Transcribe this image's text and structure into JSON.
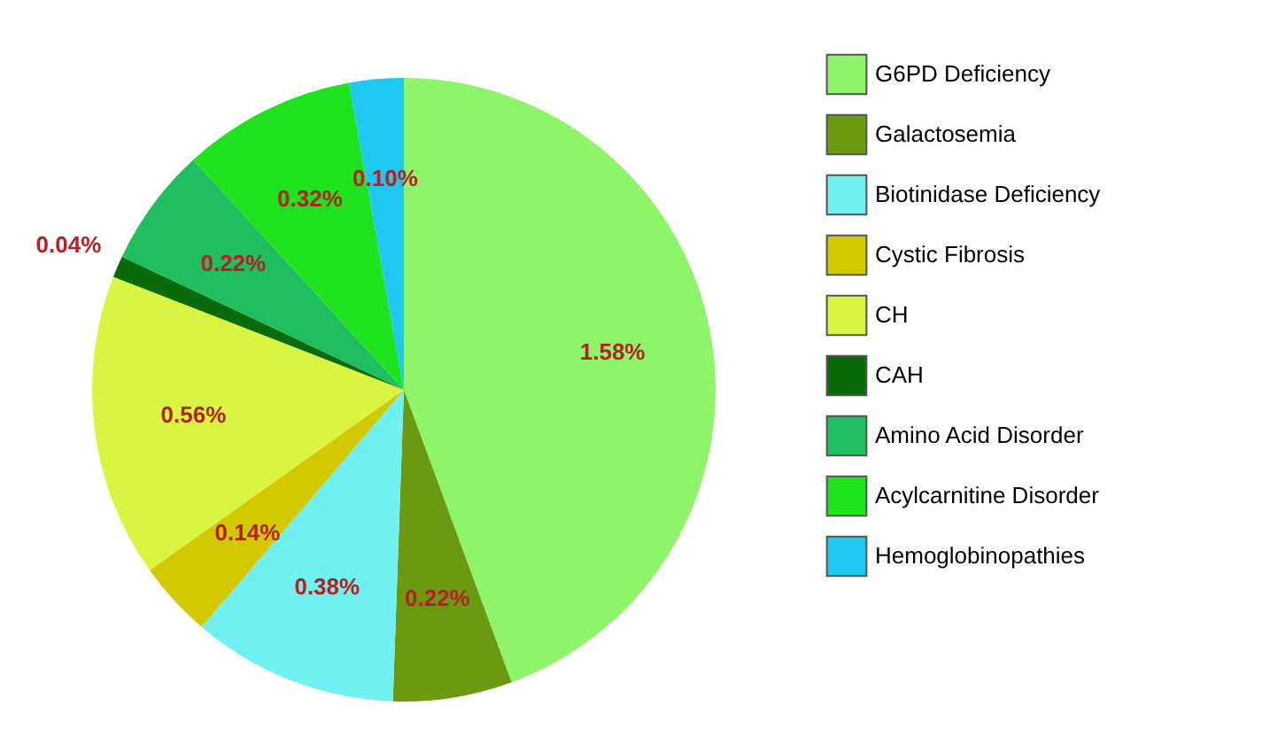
{
  "chart_data": {
    "type": "pie",
    "categories": [
      "G6PD Deficiency",
      "Galactosemia",
      "Biotinidase Deficiency",
      "Cystic Fibrosis",
      "CH",
      "CAH",
      "Amino Acid Disorder",
      "Acylcarnitine  Disorder",
      "Hemoglobinopathies"
    ],
    "values": [
      1.58,
      0.22,
      0.38,
      0.14,
      0.56,
      0.04,
      0.22,
      0.32,
      0.1
    ],
    "value_labels": [
      "1.58%",
      "0.22%",
      "0.38%",
      "0.14%",
      "0.56%",
      "0.04%",
      "0.22%",
      "0.32%",
      "0.10%"
    ],
    "colors": [
      "#8ef56a",
      "#6b9a10",
      "#70f0f0",
      "#d4c800",
      "#d9f542",
      "#0a6b0a",
      "#1fbf5f",
      "#1ee21e",
      "#1ec8f0"
    ],
    "legend": "right"
  }
}
